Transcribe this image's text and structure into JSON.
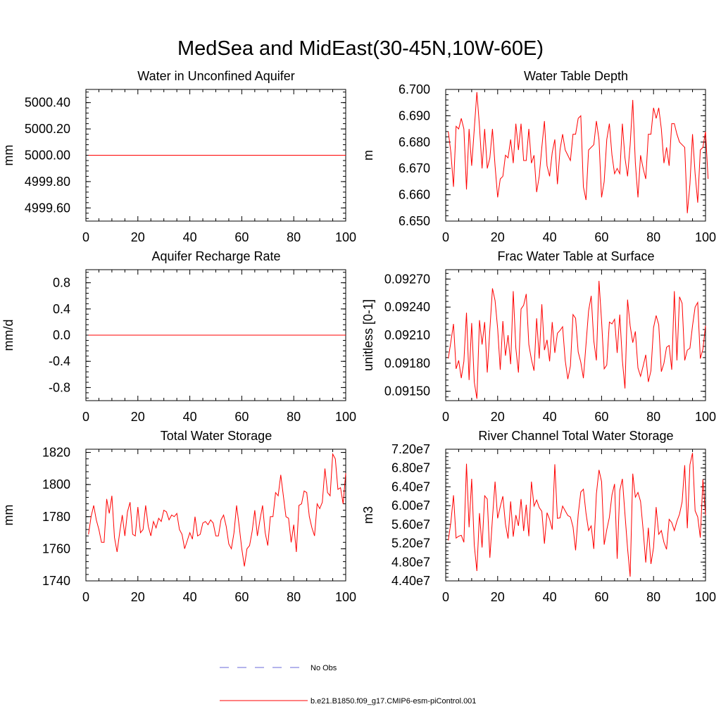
{
  "figure": {
    "title": "MedSea and MidEast(30-45N,10W-60E)",
    "series_color": "#ff0000",
    "obs_color": "#6a6ad8"
  },
  "legend": {
    "items": [
      {
        "label": "No Obs",
        "style": "dashed",
        "color": "#6a6ad8"
      },
      {
        "label": "b.e21.B1850.f09_g17.CMIP6-esm-piControl.001",
        "style": "solid",
        "color": "#ff0000"
      }
    ]
  },
  "chart_data": [
    {
      "type": "line",
      "title": "Water in Unconfined Aquifer",
      "xlabel": "",
      "ylabel": "mm",
      "xlim": [
        0,
        100
      ],
      "ylim": [
        4999.5,
        5000.5
      ],
      "xticks": [
        0,
        20,
        40,
        60,
        80,
        100
      ],
      "xtick_labels": [
        "0",
        "20",
        "40",
        "60",
        "80",
        "100"
      ],
      "yticks": [
        4999.6,
        4999.8,
        5000.0,
        5000.2,
        5000.4
      ],
      "ytick_labels": [
        "4999.60",
        "4999.80",
        "5000.00",
        "5000.20",
        "5000.40"
      ],
      "x_start": 1,
      "values": [
        5000,
        5000,
        5000,
        5000,
        5000,
        5000,
        5000,
        5000,
        5000,
        5000,
        5000,
        5000,
        5000,
        5000,
        5000,
        5000,
        5000,
        5000,
        5000,
        5000,
        5000,
        5000,
        5000,
        5000,
        5000,
        5000,
        5000,
        5000,
        5000,
        5000,
        5000,
        5000,
        5000,
        5000,
        5000,
        5000,
        5000,
        5000,
        5000,
        5000,
        5000,
        5000,
        5000,
        5000,
        5000,
        5000,
        5000,
        5000,
        5000,
        5000,
        5000,
        5000,
        5000,
        5000,
        5000,
        5000,
        5000,
        5000,
        5000,
        5000,
        5000,
        5000,
        5000,
        5000,
        5000,
        5000,
        5000,
        5000,
        5000,
        5000,
        5000,
        5000,
        5000,
        5000,
        5000,
        5000,
        5000,
        5000,
        5000,
        5000,
        5000,
        5000,
        5000,
        5000,
        5000,
        5000,
        5000,
        5000,
        5000,
        5000,
        5000,
        5000,
        5000,
        5000,
        5000,
        5000,
        5000,
        5000,
        5000,
        5000
      ]
    },
    {
      "type": "line",
      "title": "Water Table Depth",
      "xlabel": "",
      "ylabel": "m",
      "xlim": [
        0,
        100
      ],
      "ylim": [
        6.65,
        6.7
      ],
      "xticks": [
        0,
        20,
        40,
        60,
        80,
        100
      ],
      "xtick_labels": [
        "0",
        "20",
        "40",
        "60",
        "80",
        "100"
      ],
      "yticks": [
        6.65,
        6.66,
        6.67,
        6.68,
        6.69,
        6.7
      ],
      "ytick_labels": [
        "6.650",
        "6.660",
        "6.670",
        "6.680",
        "6.690",
        "6.700"
      ],
      "x_start": 1,
      "values": [
        6.684,
        6.676,
        6.663,
        6.686,
        6.685,
        6.689,
        6.685,
        6.662,
        6.685,
        6.671,
        6.685,
        6.699,
        6.686,
        6.67,
        6.685,
        6.67,
        6.674,
        6.685,
        6.671,
        6.659,
        6.666,
        6.667,
        6.675,
        6.674,
        6.681,
        6.672,
        6.687,
        6.677,
        6.687,
        6.673,
        6.673,
        6.685,
        6.672,
        6.675,
        6.661,
        6.667,
        6.678,
        6.688,
        6.671,
        6.667,
        6.676,
        6.681,
        6.664,
        6.677,
        6.683,
        6.677,
        6.675,
        6.673,
        6.683,
        6.683,
        6.689,
        6.69,
        6.663,
        6.658,
        6.677,
        6.678,
        6.679,
        6.688,
        6.681,
        6.659,
        6.665,
        6.681,
        6.687,
        6.675,
        6.668,
        6.67,
        6.668,
        6.687,
        6.674,
        6.667,
        6.679,
        6.696,
        6.672,
        6.659,
        6.675,
        6.67,
        6.666,
        6.683,
        6.683,
        6.693,
        6.689,
        6.693,
        6.685,
        6.672,
        6.678,
        6.671,
        6.687,
        6.687,
        6.683,
        6.68,
        6.679,
        6.678,
        6.653,
        6.664,
        6.683,
        6.668,
        6.657,
        6.677,
        6.678,
        6.684,
        6.666
      ]
    },
    {
      "type": "line",
      "title": "Aquifer Recharge Rate",
      "xlabel": "",
      "ylabel": "mm/d",
      "xlim": [
        0,
        100
      ],
      "ylim": [
        -1.0,
        1.0
      ],
      "xticks": [
        0,
        20,
        40,
        60,
        80,
        100
      ],
      "xtick_labels": [
        "0",
        "20",
        "40",
        "60",
        "80",
        "100"
      ],
      "yticks": [
        -0.8,
        -0.4,
        0.0,
        0.4,
        0.8
      ],
      "ytick_labels": [
        "-0.8",
        "-0.4",
        "0.0",
        "0.4",
        "0.8"
      ],
      "x_start": 1,
      "values": [
        0,
        0,
        0,
        0,
        0,
        0,
        0,
        0,
        0,
        0,
        0,
        0,
        0,
        0,
        0,
        0,
        0,
        0,
        0,
        0,
        0,
        0,
        0,
        0,
        0,
        0,
        0,
        0,
        0,
        0,
        0,
        0,
        0,
        0,
        0,
        0,
        0,
        0,
        0,
        0,
        0,
        0,
        0,
        0,
        0,
        0,
        0,
        0,
        0,
        0,
        0,
        0,
        0,
        0,
        0,
        0,
        0,
        0,
        0,
        0,
        0,
        0,
        0,
        0,
        0,
        0,
        0,
        0,
        0,
        0,
        0,
        0,
        0,
        0,
        0,
        0,
        0,
        0,
        0,
        0,
        0,
        0,
        0,
        0,
        0,
        0,
        0,
        0,
        0,
        0,
        0,
        0,
        0,
        0,
        0,
        0,
        0,
        0,
        0,
        0
      ]
    },
    {
      "type": "line",
      "title": "Frac Water Table at Surface",
      "xlabel": "",
      "ylabel": "unitless [0-1]",
      "xlim": [
        0,
        100
      ],
      "ylim": [
        0.0914,
        0.0928
      ],
      "xticks": [
        0,
        20,
        40,
        60,
        80,
        100
      ],
      "xtick_labels": [
        "0",
        "20",
        "40",
        "60",
        "80",
        "100"
      ],
      "yticks": [
        0.0915,
        0.0918,
        0.0921,
        0.0924,
        0.0927
      ],
      "ytick_labels": [
        "0.09150",
        "0.09180",
        "0.09210",
        "0.09240",
        "0.09270"
      ],
      "x_start": 1,
      "values": [
        0.09185,
        0.09203,
        0.09222,
        0.09174,
        0.09183,
        0.09164,
        0.09182,
        0.09234,
        0.09162,
        0.09223,
        0.0916,
        0.09142,
        0.09226,
        0.092,
        0.09224,
        0.0917,
        0.09216,
        0.0926,
        0.09247,
        0.09217,
        0.09173,
        0.09225,
        0.09188,
        0.0921,
        0.09179,
        0.09257,
        0.09196,
        0.0917,
        0.09238,
        0.09242,
        0.09254,
        0.092,
        0.09184,
        0.09172,
        0.09228,
        0.09185,
        0.09243,
        0.09194,
        0.09205,
        0.09182,
        0.09224,
        0.09191,
        0.09212,
        0.09215,
        0.09219,
        0.09183,
        0.09163,
        0.09177,
        0.09232,
        0.09228,
        0.09192,
        0.09181,
        0.09164,
        0.092,
        0.09236,
        0.09252,
        0.09204,
        0.09183,
        0.09268,
        0.09225,
        0.09174,
        0.09178,
        0.09224,
        0.09222,
        0.09227,
        0.09191,
        0.09232,
        0.09183,
        0.09153,
        0.09248,
        0.0922,
        0.09202,
        0.09214,
        0.09175,
        0.09166,
        0.09177,
        0.09189,
        0.0916,
        0.09172,
        0.09218,
        0.09231,
        0.09221,
        0.09171,
        0.0918,
        0.09197,
        0.09199,
        0.09173,
        0.09257,
        0.09183,
        0.09251,
        0.09244,
        0.09183,
        0.09194,
        0.09196,
        0.0922,
        0.0924,
        0.09245,
        0.09185,
        0.09195,
        0.0922
      ]
    },
    {
      "type": "line",
      "title": "Total Water Storage",
      "xlabel": "",
      "ylabel": "mm",
      "xlim": [
        0,
        100
      ],
      "ylim": [
        1740,
        1822
      ],
      "xticks": [
        0,
        20,
        40,
        60,
        80,
        100
      ],
      "xtick_labels": [
        "0",
        "20",
        "40",
        "60",
        "80",
        "100"
      ],
      "yticks": [
        1740,
        1760,
        1780,
        1800,
        1820
      ],
      "ytick_labels": [
        "1740",
        "1760",
        "1780",
        "1800",
        "1820"
      ],
      "x_start": 1,
      "values": [
        1769,
        1780,
        1787,
        1778,
        1772,
        1764,
        1764,
        1791,
        1782,
        1793,
        1767,
        1758,
        1770,
        1781,
        1768,
        1783,
        1789,
        1769,
        1768,
        1786,
        1770,
        1772,
        1787,
        1774,
        1768,
        1777,
        1773,
        1779,
        1777,
        1784,
        1783,
        1778,
        1781,
        1780,
        1782,
        1772,
        1769,
        1760,
        1765,
        1770,
        1766,
        1780,
        1768,
        1769,
        1776,
        1777,
        1775,
        1778,
        1776,
        1768,
        1768,
        1778,
        1781,
        1774,
        1763,
        1760,
        1770,
        1787,
        1774,
        1760,
        1749,
        1760,
        1762,
        1771,
        1784,
        1768,
        1778,
        1787,
        1770,
        1762,
        1780,
        1780,
        1795,
        1793,
        1806,
        1793,
        1780,
        1779,
        1764,
        1775,
        1758,
        1787,
        1788,
        1796,
        1795,
        1780,
        1773,
        1768,
        1788,
        1785,
        1789,
        1810,
        1795,
        1793,
        1819,
        1816,
        1797,
        1798,
        1788,
        1807
      ]
    },
    {
      "type": "line",
      "title": "River Channel Total Water Storage",
      "xlabel": "",
      "ylabel": "m3",
      "xlim": [
        0,
        100
      ],
      "ylim": [
        44000000,
        72000000
      ],
      "xticks": [
        0,
        20,
        40,
        60,
        80,
        100
      ],
      "xtick_labels": [
        "0",
        "20",
        "40",
        "60",
        "80",
        "100"
      ],
      "yticks": [
        44000000,
        48000000,
        52000000,
        56000000,
        60000000,
        64000000,
        68000000,
        72000000
      ],
      "ytick_labels": [
        "4.40e7",
        "4.80e7",
        "5.20e7",
        "5.60e7",
        "6.00e7",
        "6.40e7",
        "6.80e7",
        "7.20e7"
      ],
      "x_start": 1,
      "values": [
        52600000,
        56500000,
        62200000,
        53100000,
        53500000,
        53700000,
        52200000,
        68900000,
        55400000,
        65700000,
        51600000,
        46100000,
        58400000,
        51100000,
        62100000,
        61400000,
        48900000,
        57300000,
        65100000,
        57300000,
        59800000,
        62000000,
        56100000,
        53000000,
        60900000,
        53400000,
        58000000,
        55700000,
        61400000,
        54600000,
        60200000,
        53500000,
        65100000,
        59900000,
        61200000,
        59600000,
        58800000,
        51900000,
        58500000,
        57100000,
        54900000,
        68800000,
        57300000,
        57400000,
        59900000,
        58900000,
        57900000,
        57600000,
        55500000,
        50500000,
        58100000,
        62900000,
        63500000,
        58400000,
        54700000,
        55700000,
        50800000,
        62500000,
        67600000,
        65100000,
        51700000,
        54900000,
        57500000,
        62300000,
        64600000,
        48700000,
        63200000,
        65700000,
        58200000,
        50900000,
        44900000,
        66800000,
        61800000,
        62800000,
        60900000,
        54800000,
        47900000,
        55300000,
        47600000,
        51100000,
        59700000,
        53900000,
        54700000,
        52200000,
        50700000,
        57100000,
        56400000,
        54700000,
        56700000,
        58200000,
        60800000,
        68600000,
        55200000,
        68700000,
        71200000,
        58900000,
        57600000,
        53200000,
        65600000,
        58000000
      ]
    }
  ]
}
